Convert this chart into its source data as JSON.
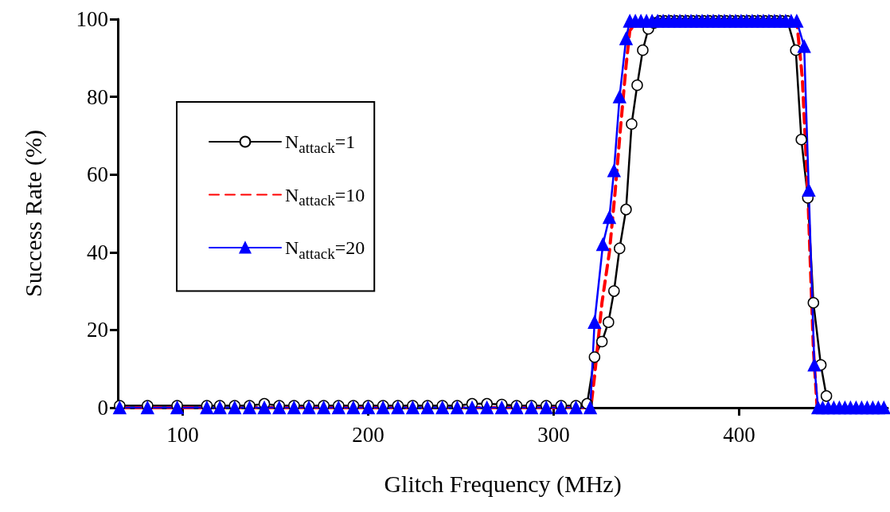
{
  "chart_data": {
    "type": "line",
    "xlabel": "Glitch Frequency (MHz)",
    "ylabel": "Success Rate (%)",
    "xlim": [
      65,
      480
    ],
    "xticks": [
      100,
      200,
      300,
      400
    ],
    "ylim": [
      0,
      100
    ],
    "yticks": [
      0,
      20,
      40,
      60,
      80,
      100
    ],
    "grid": false,
    "legend": "left",
    "series": [
      {
        "name": "N$_{attack}$=1",
        "color": "#000000",
        "marker": "circle",
        "line_style": "solid",
        "x": [
          66,
          81,
          97,
          113,
          120,
          128,
          136,
          144,
          152,
          160,
          168,
          176,
          184,
          192,
          200,
          208,
          216,
          224,
          232,
          240,
          248,
          256,
          264,
          272,
          280,
          288,
          296,
          304,
          312,
          318,
          322,
          326,
          329.5,
          332.5,
          335.5,
          339,
          342,
          345,
          348,
          351,
          354,
          357,
          360,
          363,
          366,
          369,
          372,
          375,
          378,
          381,
          384,
          387,
          390,
          393,
          396,
          399,
          402,
          405,
          408,
          411,
          414,
          417,
          420,
          423,
          426,
          430.5,
          433.5,
          437,
          440,
          444,
          447
        ],
        "values": [
          0.5,
          0.5,
          0.5,
          0.5,
          0.5,
          0.5,
          0.5,
          1,
          0.5,
          0.5,
          0.5,
          0.5,
          0.5,
          0.5,
          0.5,
          0.5,
          0.5,
          0.5,
          0.5,
          0.5,
          0.5,
          1,
          1,
          0.8,
          0.5,
          0.5,
          0.5,
          0.5,
          0.5,
          1,
          13,
          17,
          22,
          30,
          41,
          51,
          73,
          83,
          92,
          97.5,
          99,
          99.5,
          99.5,
          99.5,
          99.5,
          99.5,
          99.5,
          99.5,
          99.5,
          99.5,
          99.5,
          99.5,
          99.5,
          99.5,
          99.5,
          99.5,
          99.5,
          99.5,
          99.5,
          99.5,
          99.5,
          99.5,
          99.5,
          99.5,
          99.5,
          92,
          69,
          54,
          27,
          11,
          3
        ]
      },
      {
        "name": "N$_{attack}$=10",
        "color": "#ff0000",
        "marker": "none",
        "line_style": "dashed",
        "x": [
          66,
          320,
          322,
          326,
          330,
          333,
          336,
          339,
          341,
          345,
          431,
          434,
          437,
          440,
          442,
          478
        ],
        "values": [
          0,
          0,
          8,
          27,
          40,
          55,
          72,
          88,
          97,
          99.5,
          99.5,
          85,
          55,
          15,
          0,
          0
        ]
      },
      {
        "name": "N$_{attack}$=20",
        "color": "#0000ff",
        "marker": "triangle",
        "line_style": "solid",
        "x": [
          66,
          81,
          97,
          113,
          120,
          128,
          136,
          144,
          152,
          160,
          168,
          176,
          184,
          192,
          200,
          208,
          216,
          224,
          232,
          240,
          248,
          256,
          264,
          272,
          280,
          288,
          296,
          304,
          312,
          319.7,
          322,
          326.5,
          330,
          332.5,
          335.5,
          339,
          341,
          344,
          347,
          350,
          353,
          356,
          359,
          362,
          365,
          368,
          371,
          374,
          377,
          380,
          383,
          386,
          389,
          392,
          395,
          398,
          401,
          404,
          407,
          410,
          413,
          416,
          419,
          422,
          425,
          428,
          431,
          435,
          437.5,
          440.5,
          442.5,
          445,
          448,
          451,
          454,
          457,
          460,
          463,
          466,
          469,
          472,
          475,
          478
        ],
        "values": [
          0,
          0,
          0,
          0,
          0,
          0,
          0,
          0,
          0,
          0,
          0,
          0,
          0,
          0,
          0,
          0,
          0,
          0,
          0,
          0,
          0,
          0,
          0,
          0,
          0,
          0,
          0,
          0,
          0,
          0,
          22,
          42,
          49,
          61,
          80,
          95,
          99.5,
          99.5,
          99.5,
          99.5,
          99.5,
          99.5,
          99.5,
          99.5,
          99.5,
          99.5,
          99.5,
          99.5,
          99.5,
          99.5,
          99.5,
          99.5,
          99.5,
          99.5,
          99.5,
          99.5,
          99.5,
          99.5,
          99.5,
          99.5,
          99.5,
          99.5,
          99.5,
          99.5,
          99.5,
          99.5,
          99.5,
          93,
          56,
          11,
          0,
          0,
          0,
          0,
          0,
          0,
          0,
          0,
          0,
          0,
          0,
          0,
          0
        ]
      }
    ]
  }
}
